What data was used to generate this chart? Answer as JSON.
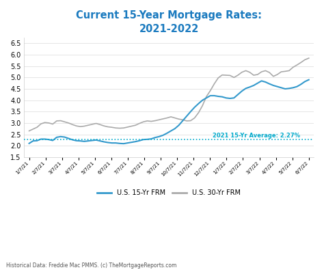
{
  "title": "Current 15-Year Mortgage Rates:\n2021-2022",
  "title_color": "#1a7abf",
  "background_color": "#ffffff",
  "ylabel": "",
  "ylim": [
    1.5,
    6.75
  ],
  "yticks": [
    1.5,
    2.0,
    2.5,
    3.0,
    3.5,
    4.0,
    4.5,
    5.0,
    5.5,
    6.0,
    6.5
  ],
  "avg_line_y": 2.27,
  "avg_label": "2021 15-Yr Average: 2.27%",
  "avg_label_color": "#00aacc",
  "footnote": "Historical Data: Freddie Mac PMMS. (c) TheMortgageReports.com",
  "legend_15yr_label": "U.S. 15-Yr FRM",
  "legend_30yr_label": "U.S. 30-Yr FRM",
  "line_15yr_color": "#3399cc",
  "line_30yr_color": "#aaaaaa",
  "xtick_labels": [
    "1/7/21",
    "2/7/21",
    "3/7/21",
    "4/7/21",
    "5/7/21",
    "6/7/21",
    "7/7/21",
    "8/7/21",
    "9/7/21",
    "10/7/21",
    "11/7/21",
    "12/7/21",
    "1/7/22",
    "2/7/22",
    "3/7/22",
    "4/7/22",
    "5/7/22",
    "6/7/22"
  ],
  "data_15yr": [
    2.1,
    2.21,
    2.22,
    2.29,
    2.29,
    2.27,
    2.23,
    2.37,
    2.4,
    2.38,
    2.32,
    2.26,
    2.22,
    2.21,
    2.19,
    2.21,
    2.23,
    2.25,
    2.21,
    2.17,
    2.14,
    2.12,
    2.12,
    2.1,
    2.09,
    2.12,
    2.15,
    2.18,
    2.22,
    2.27,
    2.28,
    2.3,
    2.36,
    2.4,
    2.46,
    2.55,
    2.65,
    2.75,
    2.9,
    3.1,
    3.3,
    3.5,
    3.69,
    3.85,
    4.0,
    4.1,
    4.2,
    4.2,
    4.17,
    4.15,
    4.1,
    4.08,
    4.1,
    4.25,
    4.4,
    4.52,
    4.58,
    4.65,
    4.75,
    4.85,
    4.8,
    4.72,
    4.65,
    4.6,
    4.55,
    4.5,
    4.52,
    4.55,
    4.6,
    4.7,
    4.82,
    4.9
  ],
  "data_30yr": [
    2.65,
    2.73,
    2.81,
    2.96,
    3.02,
    3.0,
    2.95,
    3.09,
    3.1,
    3.05,
    3.0,
    2.93,
    2.87,
    2.84,
    2.86,
    2.9,
    2.94,
    2.98,
    2.93,
    2.87,
    2.83,
    2.81,
    2.78,
    2.77,
    2.78,
    2.82,
    2.86,
    2.9,
    2.98,
    3.05,
    3.09,
    3.07,
    3.1,
    3.14,
    3.18,
    3.22,
    3.27,
    3.22,
    3.17,
    3.14,
    3.09,
    3.1,
    3.22,
    3.45,
    3.76,
    4.16,
    4.42,
    4.72,
    4.98,
    5.11,
    5.1,
    5.09,
    5.0,
    5.1,
    5.23,
    5.3,
    5.23,
    5.1,
    5.13,
    5.25,
    5.3,
    5.22,
    5.05,
    5.13,
    5.25,
    5.27,
    5.3,
    5.45,
    5.55,
    5.66,
    5.78,
    5.85
  ]
}
